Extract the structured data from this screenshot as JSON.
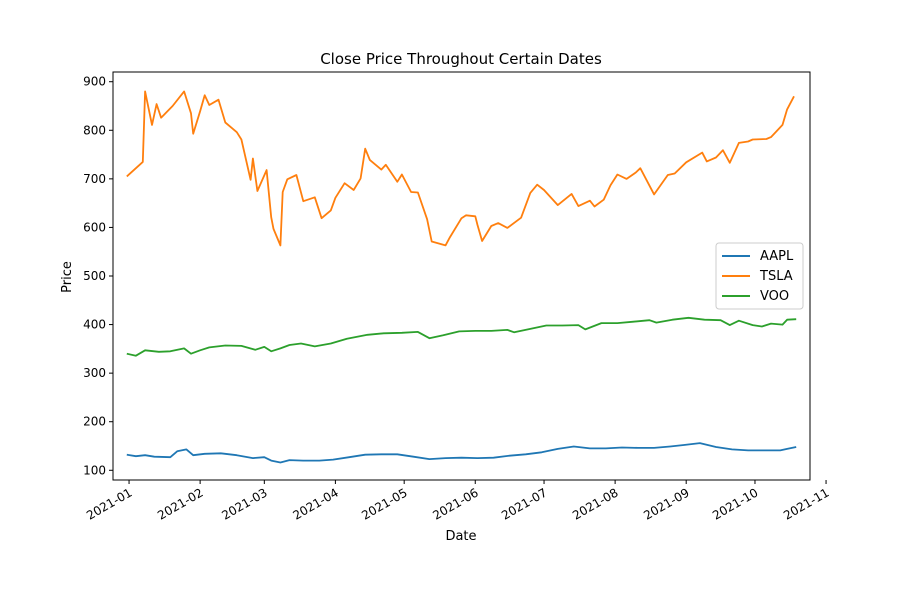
{
  "chart_data": {
    "type": "line",
    "title": "Close Price Throughout Certain Dates",
    "xlabel": "Date",
    "ylabel": "Price",
    "xlim": [
      "2020-12-25",
      "2021-10-25"
    ],
    "ylim": [
      80,
      920
    ],
    "y_ticks": [
      100,
      200,
      300,
      400,
      500,
      600,
      700,
      800,
      900
    ],
    "x_ticks": [
      "2021-01",
      "2021-02",
      "2021-03",
      "2021-04",
      "2021-05",
      "2021-06",
      "2021-07",
      "2021-08",
      "2021-09",
      "2021-10",
      "2021-11"
    ],
    "x_tick_dates": [
      "2021-01-01",
      "2021-02-01",
      "2021-03-01",
      "2021-04-01",
      "2021-05-01",
      "2021-06-01",
      "2021-07-01",
      "2021-08-01",
      "2021-09-01",
      "2021-10-01",
      "2021-11-01"
    ],
    "grid": false,
    "legend_position": "center-right",
    "series": [
      {
        "name": "AAPL",
        "color": "#1f77b4",
        "points": [
          [
            "2020-12-31",
            132
          ],
          [
            "2021-01-04",
            129
          ],
          [
            "2021-01-08",
            131
          ],
          [
            "2021-01-12",
            128
          ],
          [
            "2021-01-19",
            127
          ],
          [
            "2021-01-22",
            139
          ],
          [
            "2021-01-26",
            143
          ],
          [
            "2021-01-29",
            131
          ],
          [
            "2021-02-03",
            134
          ],
          [
            "2021-02-10",
            135
          ],
          [
            "2021-02-17",
            131
          ],
          [
            "2021-02-24",
            125
          ],
          [
            "2021-03-01",
            127
          ],
          [
            "2021-03-04",
            120
          ],
          [
            "2021-03-08",
            116
          ],
          [
            "2021-03-12",
            121
          ],
          [
            "2021-03-18",
            120
          ],
          [
            "2021-03-25",
            120
          ],
          [
            "2021-03-31",
            122
          ],
          [
            "2021-04-07",
            127
          ],
          [
            "2021-04-14",
            132
          ],
          [
            "2021-04-21",
            133
          ],
          [
            "2021-04-28",
            133
          ],
          [
            "2021-05-05",
            128
          ],
          [
            "2021-05-12",
            123
          ],
          [
            "2021-05-19",
            125
          ],
          [
            "2021-05-26",
            126
          ],
          [
            "2021-06-02",
            125
          ],
          [
            "2021-06-09",
            126
          ],
          [
            "2021-06-16",
            130
          ],
          [
            "2021-06-23",
            133
          ],
          [
            "2021-06-30",
            137
          ],
          [
            "2021-07-07",
            144
          ],
          [
            "2021-07-14",
            149
          ],
          [
            "2021-07-21",
            145
          ],
          [
            "2021-07-28",
            145
          ],
          [
            "2021-08-04",
            147
          ],
          [
            "2021-08-11",
            146
          ],
          [
            "2021-08-18",
            146
          ],
          [
            "2021-08-25",
            149
          ],
          [
            "2021-08-31",
            152
          ],
          [
            "2021-09-07",
            156
          ],
          [
            "2021-09-14",
            148
          ],
          [
            "2021-09-21",
            143
          ],
          [
            "2021-09-28",
            141
          ],
          [
            "2021-10-05",
            141
          ],
          [
            "2021-10-12",
            141
          ],
          [
            "2021-10-15",
            144
          ],
          [
            "2021-10-19",
            148
          ]
        ]
      },
      {
        "name": "TSLA",
        "color": "#ff7f0e",
        "points": [
          [
            "2020-12-31",
            705
          ],
          [
            "2021-01-07",
            735
          ],
          [
            "2021-01-08",
            880
          ],
          [
            "2021-01-11",
            811
          ],
          [
            "2021-01-13",
            854
          ],
          [
            "2021-01-15",
            826
          ],
          [
            "2021-01-20",
            850
          ],
          [
            "2021-01-25",
            880
          ],
          [
            "2021-01-28",
            835
          ],
          [
            "2021-01-29",
            793
          ],
          [
            "2021-02-01",
            839
          ],
          [
            "2021-02-03",
            872
          ],
          [
            "2021-02-05",
            852
          ],
          [
            "2021-02-09",
            863
          ],
          [
            "2021-02-12",
            816
          ],
          [
            "2021-02-17",
            796
          ],
          [
            "2021-02-19",
            781
          ],
          [
            "2021-02-23",
            698
          ],
          [
            "2021-02-24",
            742
          ],
          [
            "2021-02-26",
            675
          ],
          [
            "2021-03-02",
            718
          ],
          [
            "2021-03-04",
            621
          ],
          [
            "2021-03-05",
            597
          ],
          [
            "2021-03-08",
            563
          ],
          [
            "2021-03-09",
            673
          ],
          [
            "2021-03-11",
            699
          ],
          [
            "2021-03-15",
            708
          ],
          [
            "2021-03-18",
            654
          ],
          [
            "2021-03-23",
            662
          ],
          [
            "2021-03-26",
            619
          ],
          [
            "2021-03-30",
            635
          ],
          [
            "2021-04-01",
            661
          ],
          [
            "2021-04-05",
            691
          ],
          [
            "2021-04-09",
            677
          ],
          [
            "2021-04-12",
            701
          ],
          [
            "2021-04-14",
            762
          ],
          [
            "2021-04-16",
            739
          ],
          [
            "2021-04-21",
            719
          ],
          [
            "2021-04-23",
            729
          ],
          [
            "2021-04-28",
            694
          ],
          [
            "2021-04-30",
            709
          ],
          [
            "2021-05-04",
            673
          ],
          [
            "2021-05-07",
            672
          ],
          [
            "2021-05-11",
            617
          ],
          [
            "2021-05-13",
            571
          ],
          [
            "2021-05-19",
            563
          ],
          [
            "2021-05-21",
            580
          ],
          [
            "2021-05-26",
            619
          ],
          [
            "2021-05-28",
            625
          ],
          [
            "2021-06-01",
            623
          ],
          [
            "2021-06-02",
            605
          ],
          [
            "2021-06-04",
            572
          ],
          [
            "2021-06-08",
            603
          ],
          [
            "2021-06-11",
            609
          ],
          [
            "2021-06-15",
            599
          ],
          [
            "2021-06-21",
            620
          ],
          [
            "2021-06-25",
            671
          ],
          [
            "2021-06-28",
            688
          ],
          [
            "2021-07-01",
            677
          ],
          [
            "2021-07-07",
            646
          ],
          [
            "2021-07-13",
            669
          ],
          [
            "2021-07-16",
            644
          ],
          [
            "2021-07-21",
            655
          ],
          [
            "2021-07-23",
            643
          ],
          [
            "2021-07-27",
            657
          ],
          [
            "2021-07-30",
            687
          ],
          [
            "2021-08-02",
            709
          ],
          [
            "2021-08-06",
            700
          ],
          [
            "2021-08-10",
            713
          ],
          [
            "2021-08-12",
            722
          ],
          [
            "2021-08-18",
            668
          ],
          [
            "2021-08-24",
            708
          ],
          [
            "2021-08-27",
            711
          ],
          [
            "2021-09-01",
            734
          ],
          [
            "2021-09-08",
            754
          ],
          [
            "2021-09-10",
            736
          ],
          [
            "2021-09-14",
            744
          ],
          [
            "2021-09-17",
            759
          ],
          [
            "2021-09-20",
            733
          ],
          [
            "2021-09-24",
            774
          ],
          [
            "2021-09-28",
            777
          ],
          [
            "2021-09-30",
            781
          ],
          [
            "2021-10-06",
            782
          ],
          [
            "2021-10-08",
            786
          ],
          [
            "2021-10-13",
            811
          ],
          [
            "2021-10-15",
            843
          ],
          [
            "2021-10-18",
            870
          ]
        ]
      },
      {
        "name": "VOO",
        "color": "#2ca02c",
        "points": [
          [
            "2020-12-31",
            340
          ],
          [
            "2021-01-04",
            336
          ],
          [
            "2021-01-08",
            347
          ],
          [
            "2021-01-14",
            344
          ],
          [
            "2021-01-19",
            345
          ],
          [
            "2021-01-25",
            351
          ],
          [
            "2021-01-28",
            340
          ],
          [
            "2021-02-01",
            347
          ],
          [
            "2021-02-05",
            353
          ],
          [
            "2021-02-12",
            357
          ],
          [
            "2021-02-19",
            356
          ],
          [
            "2021-02-25",
            348
          ],
          [
            "2021-03-01",
            354
          ],
          [
            "2021-03-04",
            345
          ],
          [
            "2021-03-08",
            351
          ],
          [
            "2021-03-12",
            358
          ],
          [
            "2021-03-17",
            361
          ],
          [
            "2021-03-23",
            355
          ],
          [
            "2021-03-30",
            361
          ],
          [
            "2021-04-06",
            371
          ],
          [
            "2021-04-15",
            379
          ],
          [
            "2021-04-22",
            382
          ],
          [
            "2021-04-30",
            383
          ],
          [
            "2021-05-07",
            385
          ],
          [
            "2021-05-12",
            372
          ],
          [
            "2021-05-18",
            378
          ],
          [
            "2021-05-25",
            386
          ],
          [
            "2021-06-01",
            387
          ],
          [
            "2021-06-08",
            387
          ],
          [
            "2021-06-15",
            389
          ],
          [
            "2021-06-18",
            384
          ],
          [
            "2021-06-25",
            391
          ],
          [
            "2021-07-02",
            398
          ],
          [
            "2021-07-09",
            398
          ],
          [
            "2021-07-16",
            399
          ],
          [
            "2021-07-19",
            390
          ],
          [
            "2021-07-26",
            403
          ],
          [
            "2021-08-02",
            403
          ],
          [
            "2021-08-09",
            406
          ],
          [
            "2021-08-16",
            409
          ],
          [
            "2021-08-19",
            404
          ],
          [
            "2021-08-26",
            410
          ],
          [
            "2021-09-02",
            414
          ],
          [
            "2021-09-09",
            410
          ],
          [
            "2021-09-16",
            409
          ],
          [
            "2021-09-20",
            399
          ],
          [
            "2021-09-24",
            408
          ],
          [
            "2021-09-30",
            399
          ],
          [
            "2021-10-04",
            396
          ],
          [
            "2021-10-08",
            402
          ],
          [
            "2021-10-13",
            400
          ],
          [
            "2021-10-15",
            410
          ],
          [
            "2021-10-19",
            411
          ]
        ]
      }
    ]
  }
}
